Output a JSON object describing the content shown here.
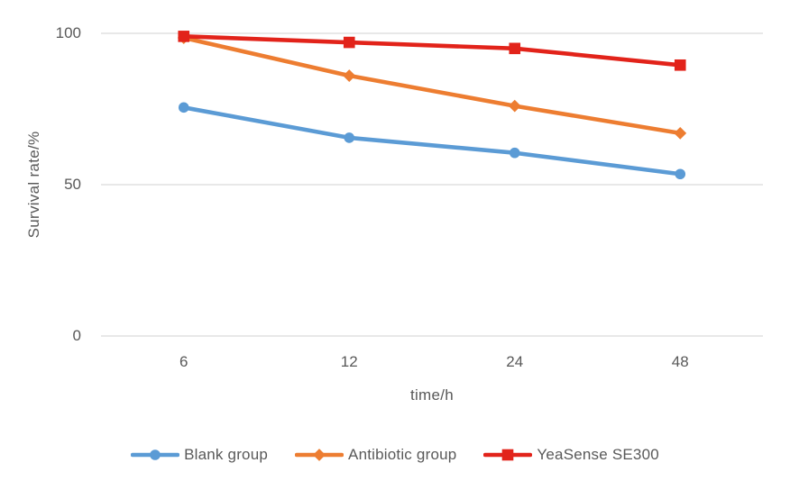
{
  "chart_data": {
    "type": "line",
    "xlabel": "time/h",
    "ylabel": "Survival rate/%",
    "categories": [
      "6",
      "12",
      "24",
      "48"
    ],
    "x_values": [
      6,
      12,
      24,
      48
    ],
    "y_ticks": [
      0,
      50,
      100
    ],
    "ylim": [
      0,
      100
    ],
    "grid": "horizontal",
    "legend_position": "bottom",
    "series": [
      {
        "name": "Blank group",
        "color": "#5B9BD5",
        "marker": "circle",
        "values": [
          75.5,
          65.5,
          60.5,
          53.5
        ]
      },
      {
        "name": "Antibiotic group",
        "color": "#ED7D31",
        "marker": "diamond",
        "values": [
          98.5,
          86,
          76,
          67
        ]
      },
      {
        "name": "YeaSense SE300",
        "color": "#E2231A",
        "marker": "square",
        "values": [
          99,
          97,
          95,
          89.5
        ]
      }
    ],
    "style": {
      "gridline_color": "#D9D9D9",
      "text_color": "#595959",
      "background": "#FFFFFF",
      "line_width": 4.6
    }
  }
}
